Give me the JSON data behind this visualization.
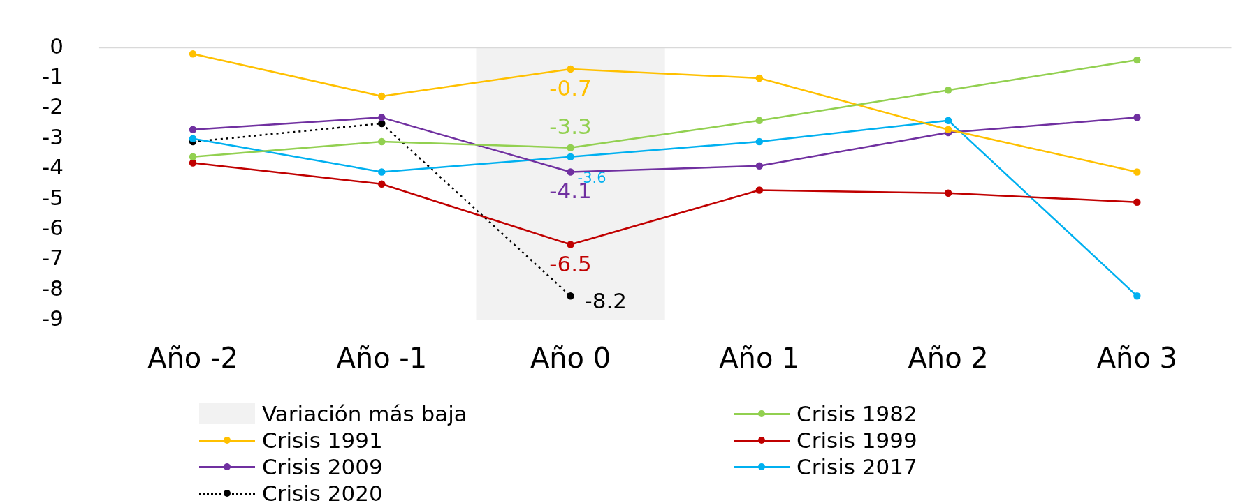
{
  "chart_data": {
    "type": "line",
    "categories": [
      "Año -2",
      "Año -1",
      "Año 0",
      "Año 1",
      "Año 2",
      "Año 3"
    ],
    "series": [
      {
        "name": "Crisis 1982",
        "color": "#92d050",
        "values": [
          -3.6,
          -3.1,
          -3.3,
          -2.4,
          -1.4,
          -0.4
        ],
        "value_labels": [
          null,
          null,
          "-3.3",
          null,
          null,
          null
        ]
      },
      {
        "name": "Crisis 1991",
        "color": "#ffc000",
        "values": [
          -0.2,
          -1.6,
          -0.7,
          -1.0,
          -2.7,
          -4.1
        ],
        "value_labels": [
          null,
          null,
          "-0.7",
          null,
          null,
          null
        ]
      },
      {
        "name": "Crisis 1999",
        "color": "#c00000",
        "values": [
          -3.8,
          -4.5,
          -6.5,
          -4.7,
          -4.8,
          -5.1
        ],
        "value_labels": [
          null,
          null,
          "-6.5",
          null,
          null,
          null
        ]
      },
      {
        "name": "Crisis 2009",
        "color": "#7030a0",
        "values": [
          -2.7,
          -2.3,
          -4.1,
          -3.9,
          -2.8,
          -2.3
        ],
        "value_labels": [
          null,
          null,
          "-4.1",
          null,
          null,
          null
        ]
      },
      {
        "name": "Crisis 2017",
        "color": "#00b0f0",
        "values": [
          -3.0,
          -4.1,
          -3.6,
          -3.1,
          -2.4,
          -8.2
        ],
        "value_labels": [
          null,
          null,
          "-3.6",
          null,
          null,
          null
        ]
      },
      {
        "name": "Crisis 2020",
        "color": "#000000",
        "values": [
          -3.1,
          -2.5,
          -8.2,
          null,
          null,
          null
        ],
        "value_labels": [
          null,
          null,
          "-8.2",
          null,
          null,
          null
        ],
        "line_style": "dotted"
      }
    ],
    "bands": [
      {
        "axis": "x",
        "from": "Año 0",
        "to": "Año 0",
        "label": "Variación más baja",
        "color": "#f2f2f2"
      }
    ],
    "ref_lines": [
      {
        "axis": "y",
        "value": 0,
        "color": "#d9d9d9"
      }
    ],
    "ylim": [
      -9,
      0
    ],
    "yticks": [
      0,
      -1,
      -2,
      -3,
      -4,
      -5,
      -6,
      -7,
      -8,
      -9
    ],
    "grid": false,
    "legend": "bottom",
    "marker": "circle"
  }
}
